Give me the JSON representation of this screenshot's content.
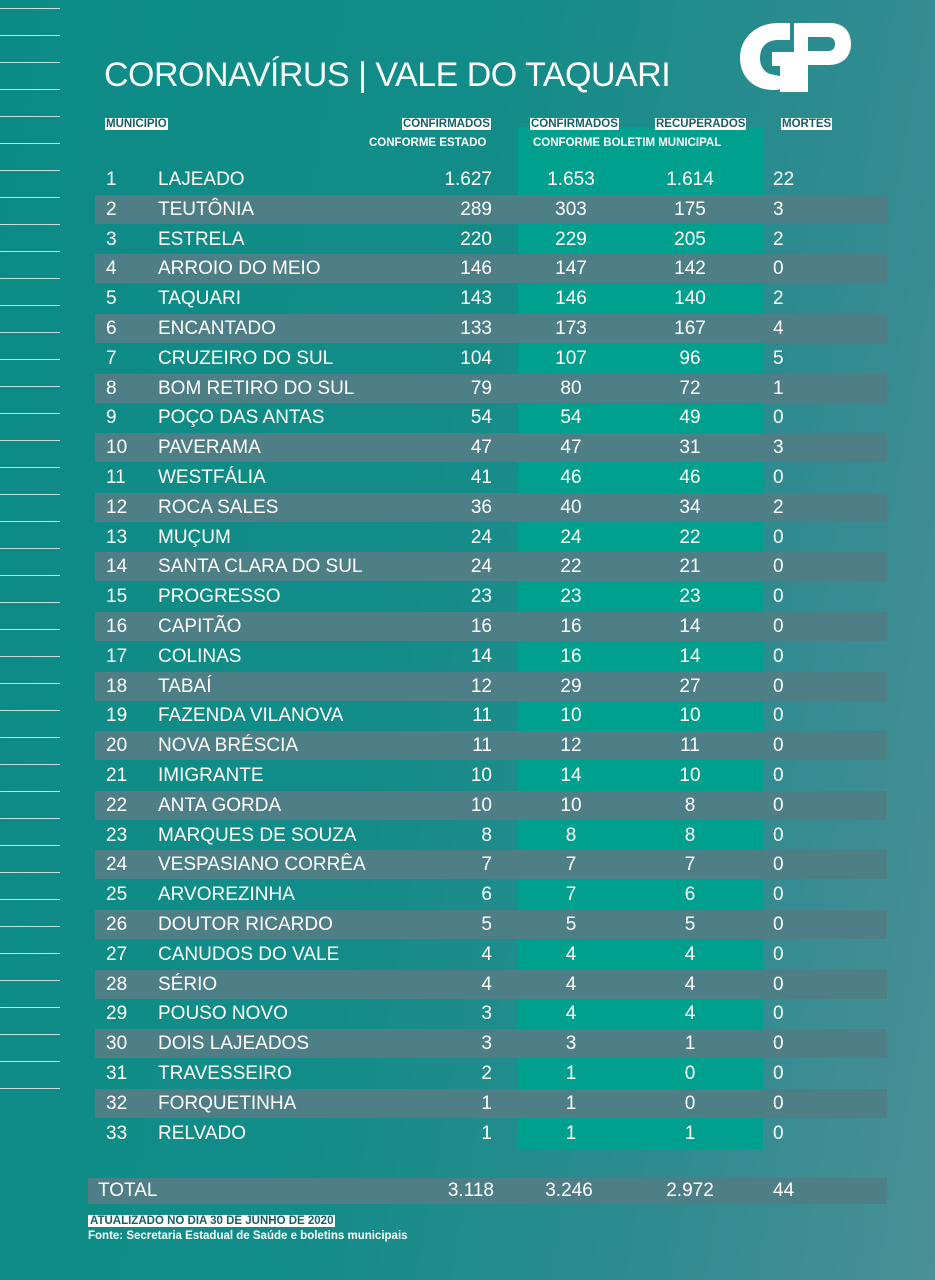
{
  "title": {
    "part1": "CORONAVÍRUS",
    "separator": "|",
    "part2": "VALE DO TAQUARI"
  },
  "logo": {
    "text": "GP"
  },
  "colors": {
    "accent_column": "#00a08e",
    "alt_row": "#4e7f87",
    "header_text": "#155f6a"
  },
  "headers": {
    "municipio": "MUNICÍPIO",
    "confirmados_estado": "CONFIRMADOS",
    "conforme_estado": "CONFORME ESTADO",
    "confirmados_boletim": "CONFIRMADOS",
    "recuperados": "RECUPERADOS",
    "conforme_boletim": "CONFORME BOLETIM MUNICIPAL",
    "mortes": "MORTES"
  },
  "rows": [
    [
      "1",
      "LAJEADO",
      "1.627",
      "1.653",
      "1.614",
      "22"
    ],
    [
      "2",
      "TEUTÔNIA",
      "289",
      "303",
      "175",
      "3"
    ],
    [
      "3",
      "ESTRELA",
      "220",
      "229",
      "205",
      "2"
    ],
    [
      "4",
      "ARROIO DO MEIO",
      "146",
      "147",
      "142",
      "0"
    ],
    [
      "5",
      "TAQUARI",
      "143",
      "146",
      "140",
      "2"
    ],
    [
      "6",
      "ENCANTADO",
      "133",
      "173",
      "167",
      "4"
    ],
    [
      "7",
      "CRUZEIRO DO SUL",
      "104",
      "107",
      "96",
      "5"
    ],
    [
      "8",
      "BOM RETIRO DO SUL",
      "79",
      "80",
      "72",
      "1"
    ],
    [
      "9",
      "POÇO DAS ANTAS",
      "54",
      "54",
      "49",
      "0"
    ],
    [
      "10",
      "PAVERAMA",
      "47",
      "47",
      "31",
      "3"
    ],
    [
      "11",
      "WESTFÁLIA",
      "41",
      "46",
      "46",
      "0"
    ],
    [
      "12",
      "ROCA SALES",
      "36",
      "40",
      "34",
      "2"
    ],
    [
      "13",
      "MUÇUM",
      "24",
      "24",
      "22",
      "0"
    ],
    [
      "14",
      "SANTA CLARA DO SUL",
      "24",
      "22",
      "21",
      "0"
    ],
    [
      "15",
      "PROGRESSO",
      "23",
      "23",
      "23",
      "0"
    ],
    [
      "16",
      "CAPITÃO",
      "16",
      "16",
      "14",
      "0"
    ],
    [
      "17",
      "COLINAS",
      "14",
      "16",
      "14",
      "0"
    ],
    [
      "18",
      "TABAÍ",
      "12",
      "29",
      "27",
      "0"
    ],
    [
      "19",
      "FAZENDA VILANOVA",
      "11",
      "10",
      "10",
      "0"
    ],
    [
      "20",
      "NOVA BRÉSCIA",
      "11",
      "12",
      "11",
      "0"
    ],
    [
      "21",
      "IMIGRANTE",
      "10",
      "14",
      "10",
      "0"
    ],
    [
      "22",
      "ANTA GORDA",
      "10",
      "10",
      "8",
      "0"
    ],
    [
      "23",
      "MARQUES DE SOUZA",
      "8",
      "8",
      "8",
      "0"
    ],
    [
      "24",
      "VESPASIANO CORRÊA",
      "7",
      "7",
      "7",
      "0"
    ],
    [
      "25",
      "ARVOREZINHA",
      "6",
      "7",
      "6",
      "0"
    ],
    [
      "26",
      "DOUTOR RICARDO",
      "5",
      "5",
      "5",
      "0"
    ],
    [
      "27",
      "CANUDOS DO VALE",
      "4",
      "4",
      "4",
      "0"
    ],
    [
      "28",
      "SÉRIO",
      "4",
      "4",
      "4",
      "0"
    ],
    [
      "29",
      "POUSO NOVO",
      "3",
      "4",
      "4",
      "0"
    ],
    [
      "30",
      "DOIS LAJEADOS",
      "3",
      "3",
      "1",
      "0"
    ],
    [
      "31",
      "TRAVESSEIRO",
      "2",
      "1",
      "0",
      "0"
    ],
    [
      "32",
      "FORQUETINHA",
      "1",
      "1",
      "0",
      "0"
    ],
    [
      "33",
      "RELVADO",
      "1",
      "1",
      "1",
      "0"
    ]
  ],
  "total": {
    "label": "TOTAL",
    "confirmados_estado": "3.118",
    "confirmados_boletim": "3.246",
    "recuperados": "2.972",
    "mortes": "44"
  },
  "footer": {
    "updated": "ATUALIZADO NO DIA 30 DE JUNHO DE 2020",
    "source": "Fonte: Secretaria Estadual de Saúde e boletins municipais"
  }
}
